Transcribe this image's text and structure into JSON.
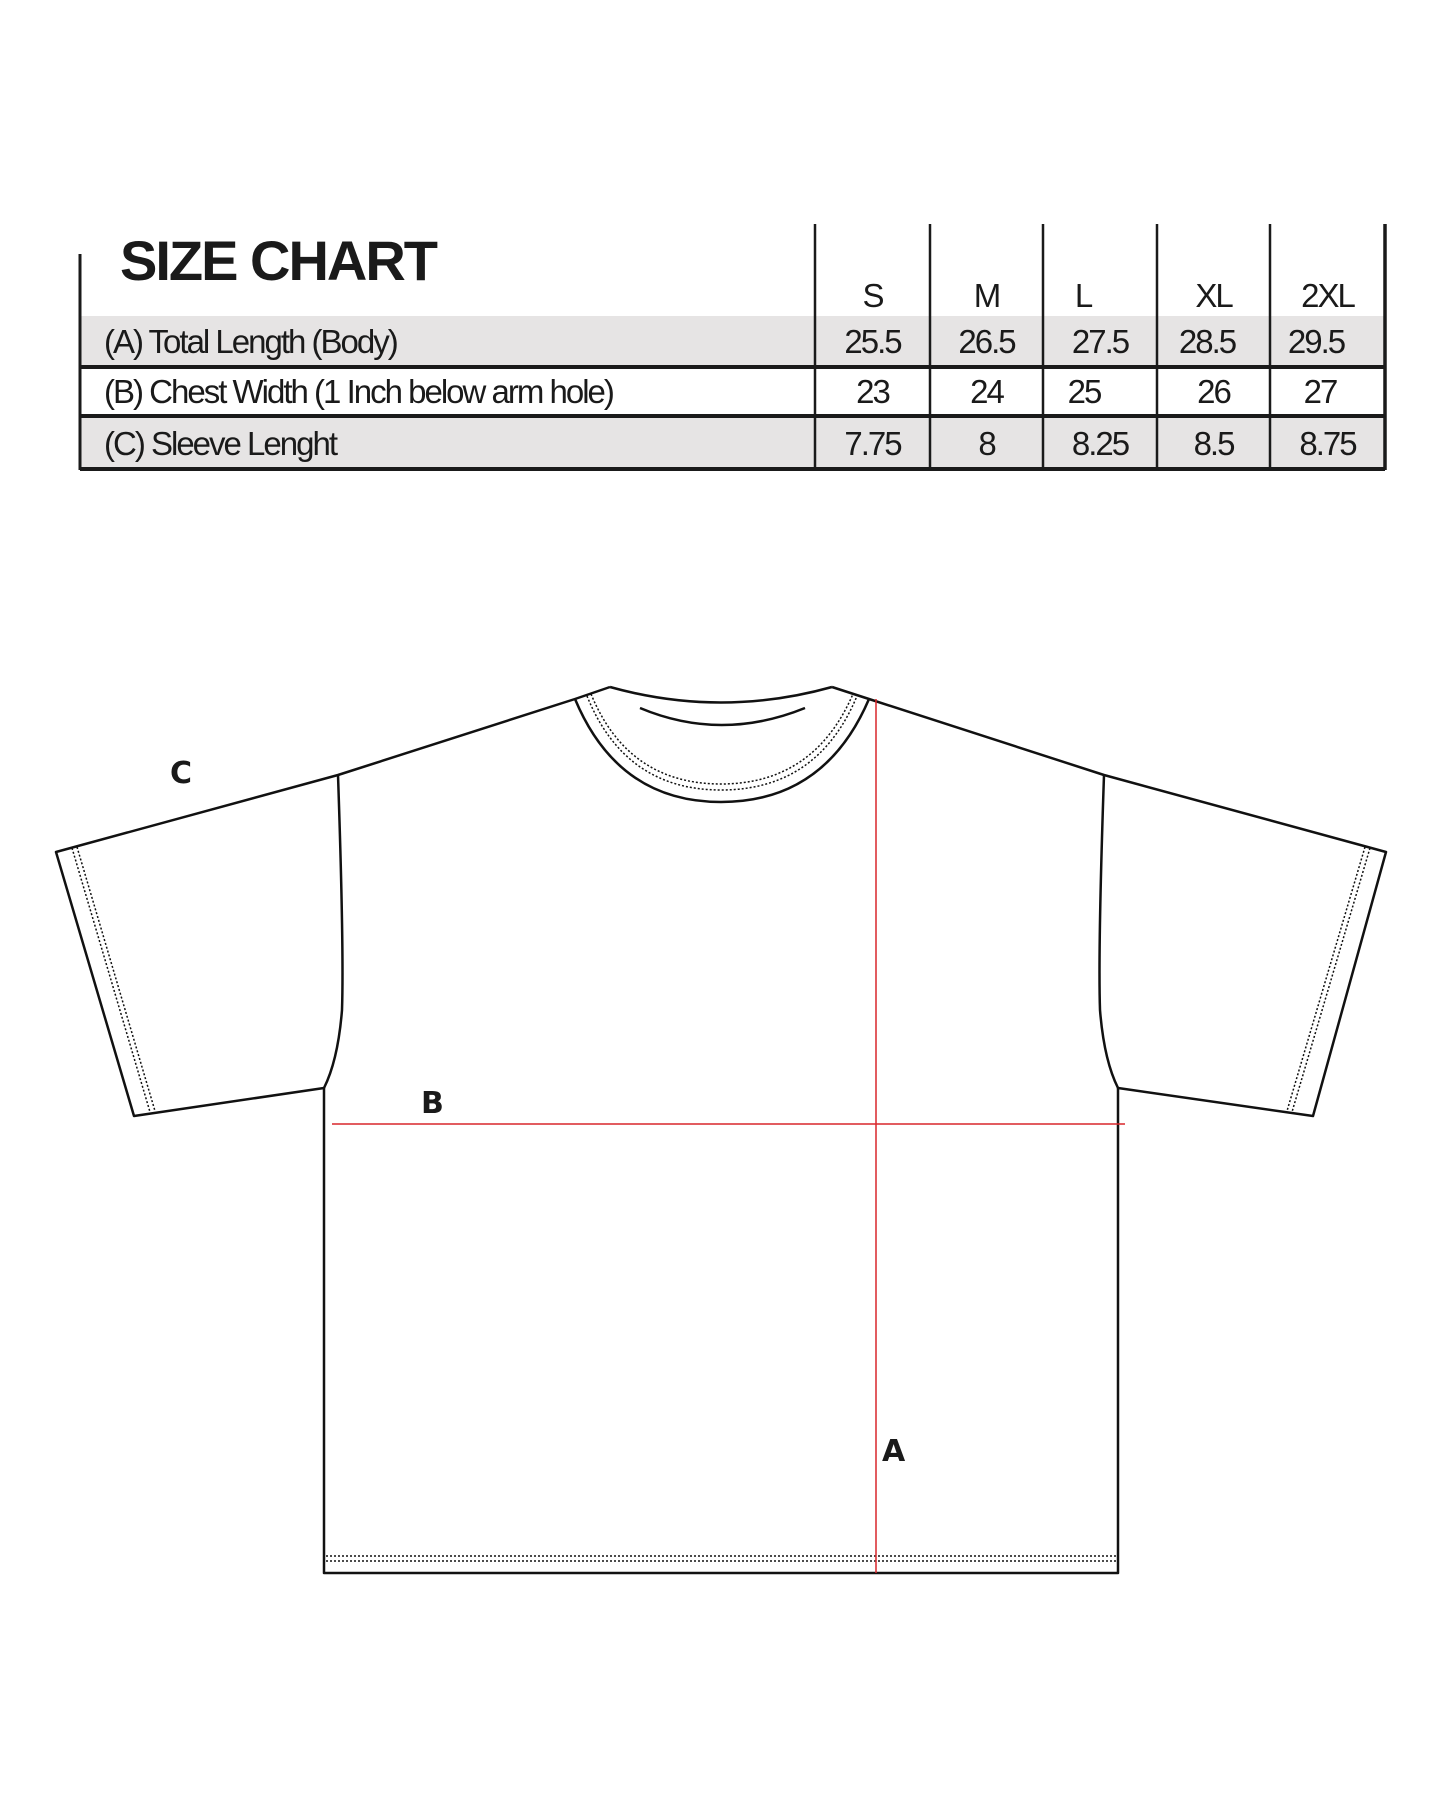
{
  "title": "SIZE CHART",
  "sizes": [
    "S",
    "M",
    "L",
    "XL",
    "2XL"
  ],
  "rows": [
    {
      "label": "(A) Total Length (Body)",
      "values": [
        "25.5",
        "26.5",
        "27.5",
        "28.5",
        "29.5"
      ],
      "shaded": true
    },
    {
      "label": "(B) Chest Width  (1 Inch below arm hole)",
      "values": [
        "23",
        "24",
        "25",
        "26",
        "27"
      ],
      "shaded": false
    },
    {
      "label": "(C) Sleeve Lenght",
      "values": [
        "7.75",
        "8",
        "8.25",
        "8.5",
        "8.75"
      ],
      "shaded": true
    }
  ],
  "diagram": {
    "labels": {
      "a": "A",
      "b": "B",
      "c": "C"
    },
    "measure_line_color": "#d9262b",
    "row_shade_color": "#e6e4e4"
  }
}
